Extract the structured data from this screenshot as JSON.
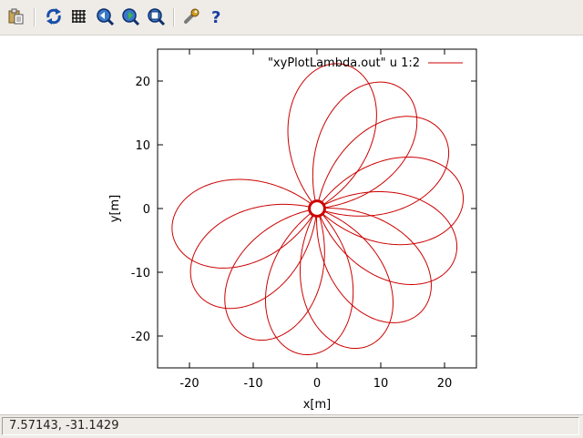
{
  "toolbar": {
    "buttons": [
      {
        "name": "copy-to-clipboard",
        "icon": "clipboard-icon"
      },
      {
        "name": "replot",
        "icon": "refresh-icon"
      },
      {
        "name": "toggle-grid",
        "icon": "grid-icon"
      },
      {
        "name": "previous-zoom",
        "icon": "zoom-previous-icon"
      },
      {
        "name": "next-zoom",
        "icon": "zoom-next-icon"
      },
      {
        "name": "autoscale",
        "icon": "zoom-autoscale-icon"
      },
      {
        "name": "settings",
        "icon": "wrench-icon"
      },
      {
        "name": "help",
        "icon": "help-icon"
      }
    ]
  },
  "status": {
    "coordinates": "7.57143, -31.1429"
  },
  "chart_data": {
    "type": "line",
    "title": "",
    "xlabel": "x[m]",
    "ylabel": "y[m]",
    "xlim": [
      -25,
      25
    ],
    "ylim": [
      -25,
      25
    ],
    "xticks": [
      -20,
      -10,
      0,
      10,
      20
    ],
    "yticks": [
      -20,
      -10,
      0,
      10,
      20
    ],
    "xtick_labels": [
      "-20",
      "-10",
      "0",
      "10",
      "20"
    ],
    "ytick_labels": [
      "-20",
      "-10",
      "0",
      "10",
      "20"
    ],
    "grid": false,
    "legend": {
      "label": "\"xyPlotLambda.out\" u 1:2",
      "placement": "top-right"
    },
    "series": [
      {
        "name": "\"xyPlotLambda.out\" u 1:2",
        "color": "#cc0000",
        "petal_count": 11,
        "petal_max_radius": 23,
        "petal_first_angle_deg": 80,
        "petal_sweep_deg": 250,
        "inner_loop_radius": 1.2
      }
    ]
  },
  "colors": {
    "toolbar_bg": "#efebe7",
    "series": "#cc0000",
    "axes": "#000000"
  }
}
